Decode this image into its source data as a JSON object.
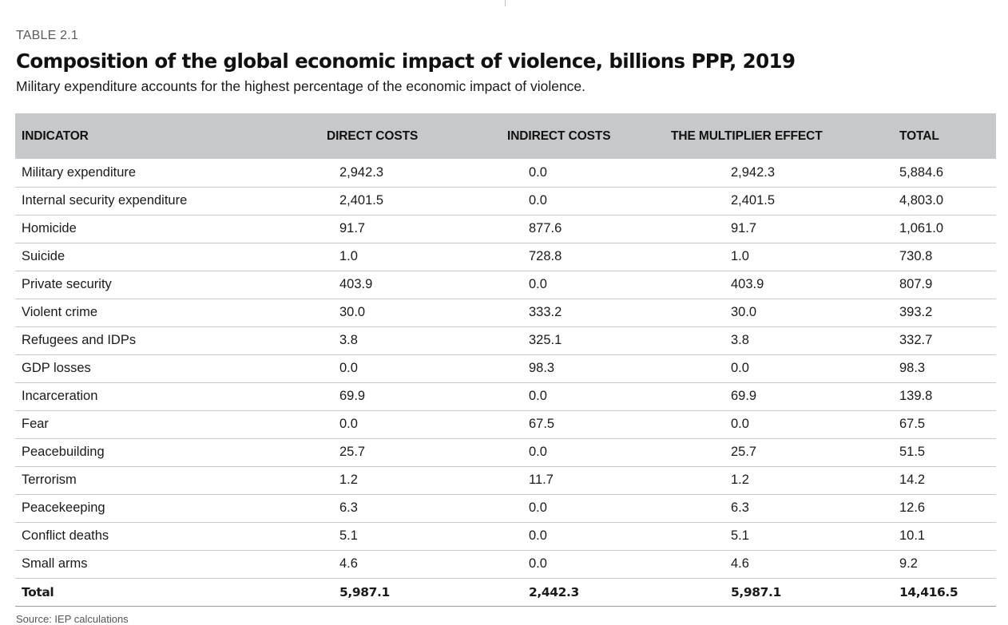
{
  "table_label": "TABLE 2.1",
  "title": "Composition of the global economic impact of violence, billions PPP, 2019",
  "subtitle": "Military expenditure accounts for the highest percentage of the economic impact of violence.",
  "columns": [
    "INDICATOR",
    "DIRECT COSTS",
    "INDIRECT COSTS",
    "THE MULTIPLIER EFFECT",
    "TOTAL"
  ],
  "rows": [
    [
      "Military expenditure",
      "2,942.3",
      "0.0",
      "2,942.3",
      "5,884.6"
    ],
    [
      "Internal security expenditure",
      "2,401.5",
      "0.0",
      "2,401.5",
      "4,803.0"
    ],
    [
      "Homicide",
      "91.7",
      "877.6",
      "91.7",
      "1,061.0"
    ],
    [
      "Suicide",
      "1.0",
      "728.8",
      "1.0",
      "730.8"
    ],
    [
      "Private security",
      "403.9",
      "0.0",
      "403.9",
      "807.9"
    ],
    [
      "Violent crime",
      "30.0",
      "333.2",
      "30.0",
      "393.2"
    ],
    [
      "Refugees and IDPs",
      "3.8",
      "325.1",
      "3.8",
      "332.7"
    ],
    [
      "GDP losses",
      "0.0",
      "98.3",
      "0.0",
      "98.3"
    ],
    [
      "Incarceration",
      "69.9",
      "0.0",
      "69.9",
      "139.8"
    ],
    [
      "Fear",
      "0.0",
      "67.5",
      "0.0",
      "67.5"
    ],
    [
      "Peacebuilding",
      "25.7",
      "0.0",
      "25.7",
      "51.5"
    ],
    [
      "Terrorism",
      "1.2",
      "11.7",
      "1.2",
      "14.2"
    ],
    [
      "Peacekeeping",
      "6.3",
      "0.0",
      "6.3",
      "12.6"
    ],
    [
      "Conflict deaths",
      "5.1",
      "0.0",
      "5.1",
      "10.1"
    ],
    [
      "Small arms",
      "4.6",
      "0.0",
      "4.6",
      "9.2"
    ]
  ],
  "total_row": [
    "Total",
    "5,987.1",
    "2,442.3",
    "5,987.1",
    "14,416.5"
  ],
  "source": "Source: IEP calculations",
  "colors": {
    "header_bg": "#c7c8ca",
    "row_divider": "#c9c9c9"
  }
}
